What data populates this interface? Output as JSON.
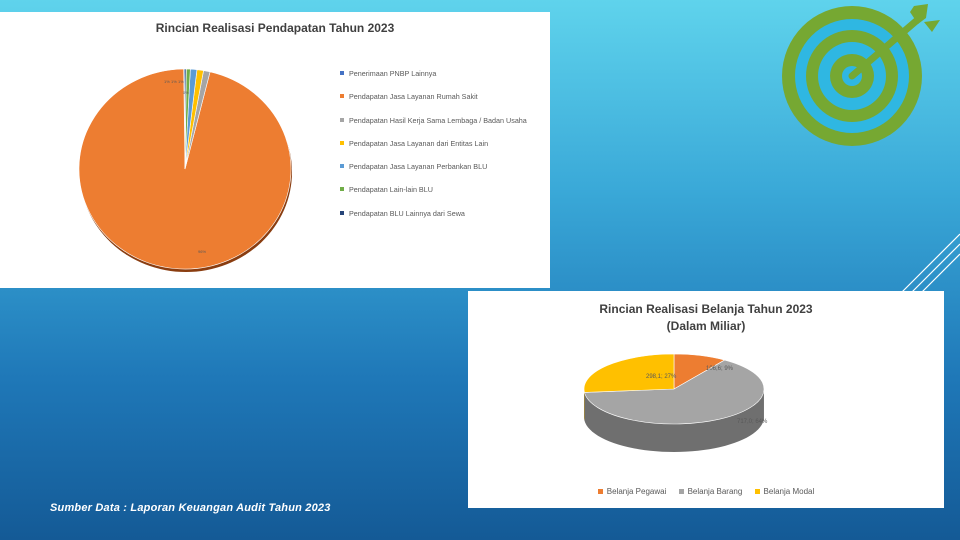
{
  "slide": {
    "source_caption": "Sumber Data : Laporan Keuangan Audit Tahun 2023"
  },
  "logo": {
    "icon": "target-icon",
    "color": "#76a832"
  },
  "chart_data": [
    {
      "type": "pie",
      "title": "Rincian Realisasi Pendapatan Tahun 2023",
      "legend_position": "right",
      "series": [
        {
          "name": "Penerimaan PNBP Lainnya",
          "value": 0.2,
          "color": "#4472c4"
        },
        {
          "name": "Pendapatan Jasa Layanan Rumah Sakit",
          "value": 96,
          "color": "#ed7d31"
        },
        {
          "name": "Pendapatan Hasil Kerja Sama Lembaga / Badan Usaha",
          "value": 1,
          "color": "#a5a5a5"
        },
        {
          "name": "Pendapatan Jasa Layanan dari Entitas Lain",
          "value": 1,
          "color": "#ffc000"
        },
        {
          "name": "Pendapatan Jasa Layanan Perbankan BLU",
          "value": 1,
          "color": "#5b9bd5"
        },
        {
          "name": "Pendapatan Lain-lain BLU",
          "value": 0.6,
          "color": "#70ad47"
        },
        {
          "name": "Pendapatan BLU Lainnya dari Sewa",
          "value": 0.2,
          "color": "#264478"
        }
      ],
      "data_labels": [
        "96%",
        "1%",
        "1%",
        "1%",
        "0%"
      ]
    },
    {
      "type": "pie",
      "title_line1": "Rincian Realisasi Belanja Tahun 2023",
      "title_line2": "(Dalam Miliar)",
      "legend_position": "bottom",
      "series": [
        {
          "name": "Belanja Pegawai",
          "value": 106.6,
          "percent": 9,
          "label": "106,6; 9%",
          "color": "#ed7d31"
        },
        {
          "name": "Belanja Barang",
          "value": 717.0,
          "percent": 64,
          "label": "717,0; 64%",
          "color": "#a5a5a5"
        },
        {
          "name": "Belanja Modal",
          "value": 298.1,
          "percent": 27,
          "label": "298,1; 27%",
          "color": "#ffc000"
        }
      ]
    }
  ]
}
